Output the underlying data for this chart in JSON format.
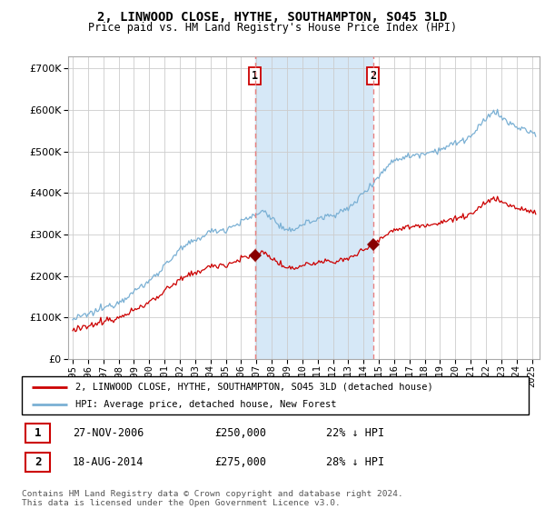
{
  "title": "2, LINWOOD CLOSE, HYTHE, SOUTHAMPTON, SO45 3LD",
  "subtitle": "Price paid vs. HM Land Registry's House Price Index (HPI)",
  "legend_property": "2, LINWOOD CLOSE, HYTHE, SOUTHAMPTON, SO45 3LD (detached house)",
  "legend_hpi": "HPI: Average price, detached house, New Forest",
  "transaction1_date": "27-NOV-2006",
  "transaction1_price": "£250,000",
  "transaction1_info": "22% ↓ HPI",
  "transaction2_date": "18-AUG-2014",
  "transaction2_price": "£275,000",
  "transaction2_info": "28% ↓ HPI",
  "footnote": "Contains HM Land Registry data © Crown copyright and database right 2024.\nThis data is licensed under the Open Government Licence v3.0.",
  "property_color": "#cc0000",
  "hpi_color": "#7ab0d4",
  "shaded_color": "#d6e8f7",
  "vline_color": "#e88080",
  "marker_color": "#880000",
  "ylim": [
    0,
    730000
  ],
  "yticks": [
    0,
    100000,
    200000,
    300000,
    400000,
    500000,
    600000,
    700000
  ],
  "xlim_start": 1994.7,
  "xlim_end": 2025.5,
  "t1_year": 2006.9,
  "t2_year": 2014.63
}
